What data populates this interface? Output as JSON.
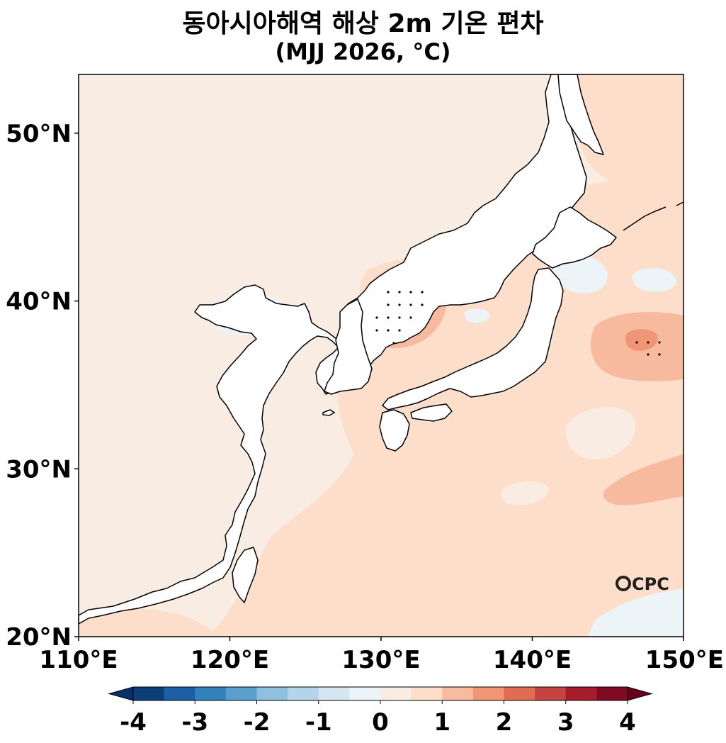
{
  "title": {
    "line1": "동아시아해역 해상 2m 기온 편차",
    "line2": "(MJJ 2026, °C)"
  },
  "map": {
    "lon_range": [
      110,
      150
    ],
    "lat_range": [
      20,
      53.5
    ],
    "lon_ticks": [
      {
        "value": 110,
        "label": "110°E"
      },
      {
        "value": 120,
        "label": "120°E"
      },
      {
        "value": 130,
        "label": "130°E"
      },
      {
        "value": 140,
        "label": "140°E"
      },
      {
        "value": 150,
        "label": "150°E"
      }
    ],
    "lat_ticks": [
      {
        "value": 20,
        "label": "20°N"
      },
      {
        "value": 30,
        "label": "30°N"
      },
      {
        "value": 40,
        "label": "40°N"
      },
      {
        "value": 50,
        "label": "50°N"
      }
    ],
    "land_color": "#ffffff",
    "coast_color": "#000000"
  },
  "colorbar": {
    "min": -4,
    "max": 4,
    "step": 0.5,
    "tick_labels": [
      "-4",
      "-3",
      "-2",
      "-1",
      "0",
      "1",
      "2",
      "3",
      "4"
    ],
    "colors": [
      "#0c3f78",
      "#1c5fa7",
      "#3280bc",
      "#5ba0cd",
      "#8ec0dd",
      "#b5d4e9",
      "#d6e6f1",
      "#ecf4f7",
      "#f9ece2",
      "#fddecb",
      "#f8ba9e",
      "#f09676",
      "#e06c54",
      "#c54340",
      "#a51d2c",
      "#800b23"
    ]
  },
  "logo": {
    "text": "CPC"
  }
}
